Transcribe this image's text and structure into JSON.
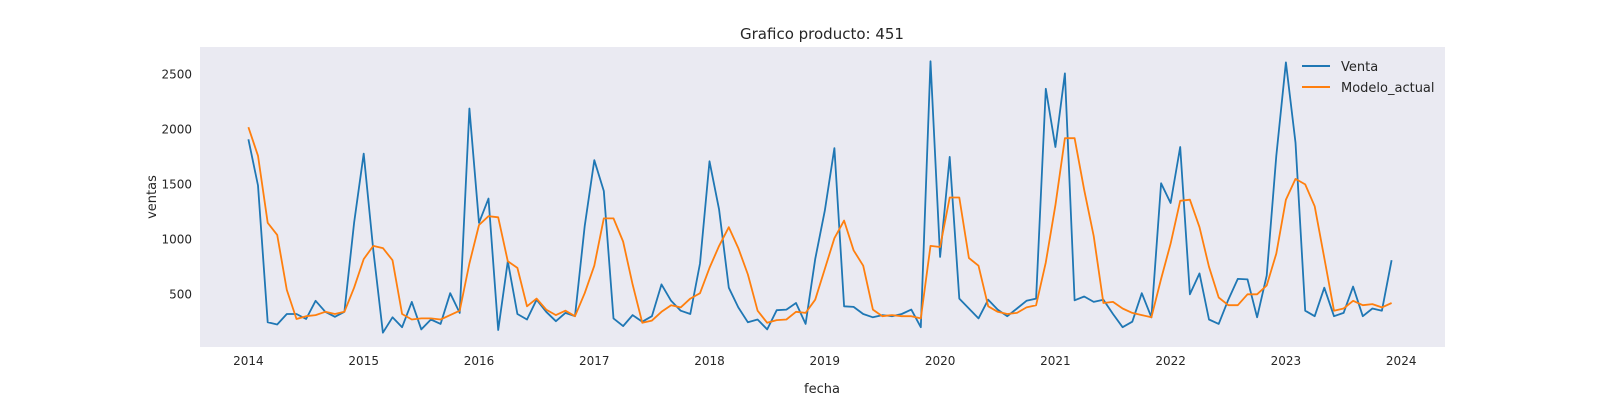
{
  "chart_data": {
    "type": "line",
    "title": "Grafico producto: 451",
    "xlabel": "fecha",
    "ylabel": "ventas",
    "xlim": [
      2013.58,
      2024.38
    ],
    "ylim": [
      20,
      2750
    ],
    "x_ticks": [
      2014,
      2015,
      2016,
      2017,
      2018,
      2019,
      2020,
      2021,
      2022,
      2023,
      2024
    ],
    "x_tick_labels": [
      "2014",
      "2015",
      "2016",
      "2017",
      "2018",
      "2019",
      "2020",
      "2021",
      "2022",
      "2023",
      "2024"
    ],
    "y_ticks": [
      500,
      1000,
      1500,
      2000,
      2500
    ],
    "y_tick_labels": [
      "500",
      "1000",
      "1500",
      "2000",
      "2500"
    ],
    "grid": false,
    "legend_position": "upper right",
    "background": "#eaeaf2",
    "x": [
      2014.0,
      2014.083,
      2014.167,
      2014.25,
      2014.333,
      2014.417,
      2014.5,
      2014.583,
      2014.667,
      2014.75,
      2014.833,
      2014.917,
      2015.0,
      2015.083,
      2015.167,
      2015.25,
      2015.333,
      2015.417,
      2015.5,
      2015.583,
      2015.667,
      2015.75,
      2015.833,
      2015.917,
      2016.0,
      2016.083,
      2016.167,
      2016.25,
      2016.333,
      2016.417,
      2016.5,
      2016.583,
      2016.667,
      2016.75,
      2016.833,
      2016.917,
      2017.0,
      2017.083,
      2017.167,
      2017.25,
      2017.333,
      2017.417,
      2017.5,
      2017.583,
      2017.667,
      2017.75,
      2017.833,
      2017.917,
      2018.0,
      2018.083,
      2018.167,
      2018.25,
      2018.333,
      2018.417,
      2018.5,
      2018.583,
      2018.667,
      2018.75,
      2018.833,
      2018.917,
      2019.0,
      2019.083,
      2019.167,
      2019.25,
      2019.333,
      2019.417,
      2019.5,
      2019.583,
      2019.667,
      2019.75,
      2019.833,
      2019.917,
      2020.0,
      2020.083,
      2020.167,
      2020.25,
      2020.333,
      2020.417,
      2020.5,
      2020.583,
      2020.667,
      2020.75,
      2020.833,
      2020.917,
      2021.0,
      2021.083,
      2021.167,
      2021.25,
      2021.333,
      2021.417,
      2021.5,
      2021.583,
      2021.667,
      2021.75,
      2021.833,
      2021.917,
      2022.0,
      2022.083,
      2022.167,
      2022.25,
      2022.333,
      2022.417,
      2022.5,
      2022.583,
      2022.667,
      2022.75,
      2022.833,
      2022.917,
      2023.0,
      2023.083,
      2023.167,
      2023.25,
      2023.333,
      2023.417,
      2023.5,
      2023.583,
      2023.667,
      2023.75,
      2023.833,
      2023.917
    ],
    "series": [
      {
        "name": "Venta",
        "color": "#1f77b4",
        "values": [
          1910,
          1490,
          245,
          225,
          320,
          320,
          275,
          440,
          340,
          295,
          340,
          1150,
          1780,
          900,
          150,
          290,
          200,
          430,
          180,
          270,
          230,
          510,
          330,
          2190,
          1150,
          1370,
          175,
          800,
          320,
          270,
          450,
          340,
          255,
          330,
          300,
          1120,
          1720,
          1440,
          280,
          210,
          310,
          250,
          300,
          590,
          440,
          350,
          320,
          780,
          1710,
          1270,
          560,
          380,
          245,
          270,
          180,
          355,
          360,
          420,
          230,
          820,
          1260,
          1830,
          390,
          385,
          320,
          290,
          310,
          300,
          320,
          360,
          200,
          2620,
          840,
          1750,
          460,
          370,
          280,
          450,
          360,
          300,
          370,
          440,
          460,
          2370,
          1840,
          2510,
          445,
          480,
          430,
          450,
          320,
          200,
          250,
          510,
          290,
          1510,
          1330,
          1840,
          500,
          690,
          270,
          230,
          450,
          640,
          635,
          290,
          670,
          1760,
          2610,
          1880,
          350,
          300,
          560,
          300,
          330,
          570,
          300,
          370,
          350,
          810
        ]
      },
      {
        "name": "Modelo_actual",
        "color": "#ff7f0e",
        "values": [
          2020,
          1760,
          1150,
          1040,
          540,
          275,
          300,
          310,
          340,
          320,
          340,
          560,
          820,
          940,
          920,
          810,
          320,
          270,
          280,
          280,
          270,
          310,
          350,
          780,
          1130,
          1210,
          1200,
          800,
          740,
          390,
          460,
          360,
          310,
          350,
          300,
          510,
          760,
          1190,
          1190,
          980,
          590,
          240,
          260,
          340,
          400,
          380,
          460,
          510,
          740,
          940,
          1110,
          920,
          680,
          350,
          240,
          265,
          270,
          340,
          330,
          450,
          730,
          1010,
          1170,
          900,
          760,
          360,
          300,
          310,
          300,
          300,
          280,
          940,
          930,
          1380,
          1380,
          830,
          760,
          390,
          340,
          320,
          330,
          380,
          400,
          790,
          1310,
          1920,
          1920,
          1450,
          1030,
          420,
          430,
          370,
          330,
          310,
          290,
          640,
          960,
          1350,
          1360,
          1110,
          750,
          470,
          400,
          400,
          500,
          500,
          580,
          870,
          1360,
          1550,
          1500,
          1300,
          830,
          350,
          370,
          440,
          400,
          410,
          380,
          420
        ]
      }
    ]
  }
}
